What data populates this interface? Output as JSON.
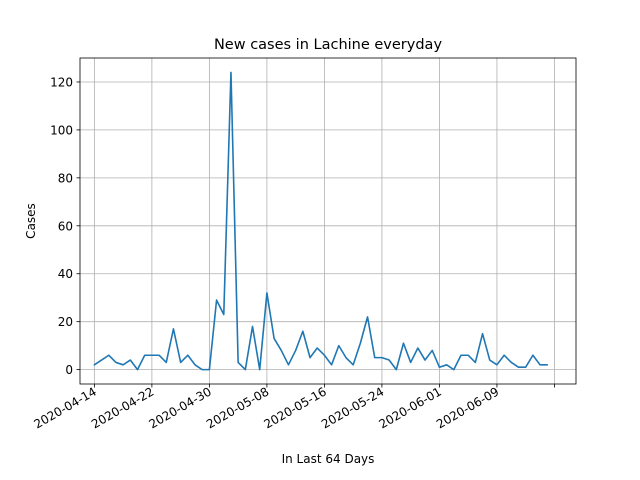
{
  "chart_data": {
    "type": "line",
    "title": "New cases in Lachine everyday",
    "xlabel": "In Last 64 Days",
    "ylabel": "Cases",
    "grid": true,
    "color": "#1f77b4",
    "ylim": [
      -6,
      130
    ],
    "xlim": [
      "2020-04-12",
      "2020-06-20"
    ],
    "yticks": [
      0,
      20,
      40,
      60,
      80,
      100,
      120
    ],
    "xticks": [
      "2020-04-14",
      "2020-04-22",
      "2020-04-30",
      "2020-05-08",
      "2020-05-16",
      "2020-05-24",
      "2020-06-01",
      "2020-06-09",
      "2020-06-17"
    ],
    "xtick_labels": [
      "2020-04-14",
      "2020-04-22",
      "2020-04-30",
      "2020-05-08",
      "2020-05-16",
      "2020-05-24",
      "2020-06-01",
      "2020-06-09",
      ""
    ],
    "series": [
      {
        "x": [
          "2020-04-14",
          "2020-04-15",
          "2020-04-16",
          "2020-04-17",
          "2020-04-18",
          "2020-04-19",
          "2020-04-20",
          "2020-04-21",
          "2020-04-22",
          "2020-04-23",
          "2020-04-24",
          "2020-04-25",
          "2020-04-26",
          "2020-04-27",
          "2020-04-28",
          "2020-04-29",
          "2020-04-30",
          "2020-05-01",
          "2020-05-02",
          "2020-05-03",
          "2020-05-04",
          "2020-05-05",
          "2020-05-06",
          "2020-05-07",
          "2020-05-08",
          "2020-05-09",
          "2020-05-10",
          "2020-05-11",
          "2020-05-12",
          "2020-05-13",
          "2020-05-14",
          "2020-05-15",
          "2020-05-16",
          "2020-05-17",
          "2020-05-18",
          "2020-05-19",
          "2020-05-20",
          "2020-05-21",
          "2020-05-22",
          "2020-05-23",
          "2020-05-24",
          "2020-05-25",
          "2020-05-26",
          "2020-05-27",
          "2020-05-28",
          "2020-05-29",
          "2020-05-30",
          "2020-05-31",
          "2020-06-01",
          "2020-06-02",
          "2020-06-03",
          "2020-06-04",
          "2020-06-05",
          "2020-06-06",
          "2020-06-07",
          "2020-06-08",
          "2020-06-09",
          "2020-06-10",
          "2020-06-11",
          "2020-06-12",
          "2020-06-13",
          "2020-06-14",
          "2020-06-15",
          "2020-06-16"
        ],
        "values": [
          2,
          4,
          6,
          3,
          2,
          4,
          0,
          6,
          6,
          6,
          3,
          17,
          3,
          6,
          2,
          0,
          0,
          29,
          23,
          124,
          3,
          0,
          18,
          0,
          32,
          13,
          8,
          2,
          8,
          16,
          5,
          9,
          6,
          2,
          10,
          5,
          2,
          11,
          22,
          5,
          5,
          4,
          0,
          11,
          3,
          9,
          4,
          8,
          1,
          2,
          0,
          6,
          6,
          3,
          15,
          4,
          2,
          6,
          3,
          1,
          1,
          6,
          2,
          2
        ]
      }
    ]
  }
}
